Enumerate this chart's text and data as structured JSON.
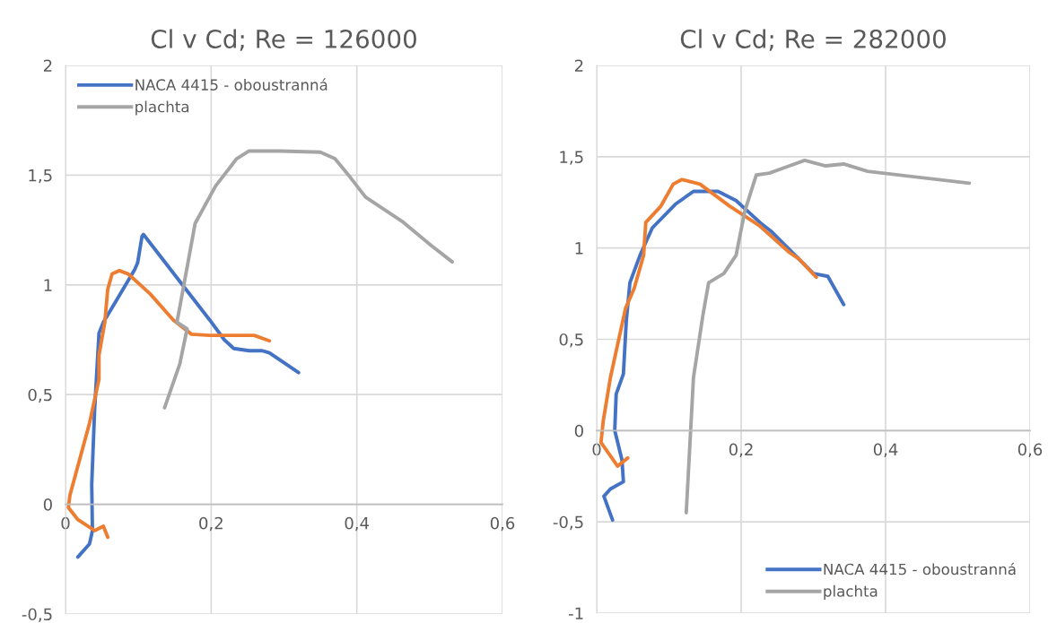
{
  "chart_data": [
    {
      "type": "line",
      "title": "Cl v Cd; Re = 126000",
      "xlim": [
        0,
        0.6
      ],
      "ylim": [
        -0.5,
        2
      ],
      "xticks": [
        {
          "value": 0,
          "label": "0"
        },
        {
          "value": 0.2,
          "label": "0,2"
        },
        {
          "value": 0.4,
          "label": "0,4"
        },
        {
          "value": 0.6,
          "label": "0,6"
        }
      ],
      "yticks": [
        {
          "value": -0.5,
          "label": "-0,5"
        },
        {
          "value": 0,
          "label": "0"
        },
        {
          "value": 0.5,
          "label": "0,5"
        },
        {
          "value": 1,
          "label": "1"
        },
        {
          "value": 1.5,
          "label": "1,5"
        },
        {
          "value": 2,
          "label": "2"
        }
      ],
      "grid": true,
      "legend": "top left",
      "marker": "none",
      "line_style": "solid",
      "series": [
        {
          "name": "NACA 4415 - oboustranná",
          "color": "#4472c4",
          "x": [
            0.017,
            0.033,
            0.037,
            0.036,
            0.04,
            0.046,
            0.052,
            0.07,
            0.095,
            0.099,
            0.105,
            0.107,
            0.198,
            0.218,
            0.231,
            0.252,
            0.27,
            0.28,
            0.3,
            0.32
          ],
          "values": [
            -0.24,
            -0.18,
            -0.12,
            0.09,
            0.43,
            0.78,
            0.83,
            0.93,
            1.07,
            1.1,
            1.22,
            1.23,
            0.84,
            0.75,
            0.71,
            0.7,
            0.7,
            0.69,
            0.645,
            0.6
          ]
        },
        {
          "color": "#ed7d31",
          "x": [
            0.058,
            0.052,
            0.04,
            0.017,
            0.004,
            0.006,
            0.033,
            0.046,
            0.046,
            0.054,
            0.058,
            0.064,
            0.074,
            0.086,
            0.116,
            0.148,
            0.173,
            0.198,
            0.239,
            0.259,
            0.28
          ],
          "values": [
            -0.15,
            -0.1,
            -0.12,
            -0.07,
            -0.015,
            0.04,
            0.37,
            0.57,
            0.68,
            0.83,
            0.98,
            1.05,
            1.065,
            1.05,
            0.96,
            0.84,
            0.775,
            0.77,
            0.77,
            0.77,
            0.745
          ]
        },
        {
          "name": "plachta",
          "color": "#a5a5a5",
          "x": [
            0.136,
            0.157,
            0.167,
            0.153,
            0.157,
            0.178,
            0.206,
            0.235,
            0.252,
            0.28,
            0.296,
            0.35,
            0.37,
            0.391,
            0.412,
            0.462,
            0.502,
            0.531
          ],
          "values": [
            0.44,
            0.64,
            0.8,
            0.83,
            0.9,
            1.28,
            1.45,
            1.575,
            1.61,
            1.61,
            1.61,
            1.605,
            1.575,
            1.49,
            1.4,
            1.29,
            1.18,
            1.105
          ]
        }
      ]
    },
    {
      "type": "line",
      "title": "Cl v Cd; Re = 282000",
      "xlim": [
        0,
        0.6
      ],
      "ylim": [
        -1,
        2
      ],
      "xticks": [
        {
          "value": 0,
          "label": "0"
        },
        {
          "value": 0.2,
          "label": "0,2"
        },
        {
          "value": 0.4,
          "label": "0,4"
        },
        {
          "value": 0.6,
          "label": "0,6"
        }
      ],
      "yticks": [
        {
          "value": -1,
          "label": "-1"
        },
        {
          "value": -0.5,
          "label": "-0,5"
        },
        {
          "value": 0,
          "label": "0"
        },
        {
          "value": 0.5,
          "label": "0,5"
        },
        {
          "value": 1,
          "label": "1"
        },
        {
          "value": 1.5,
          "label": "1,5"
        },
        {
          "value": 2,
          "label": "2"
        }
      ],
      "grid": true,
      "legend": "bottom right",
      "marker": "none",
      "line_style": "solid",
      "series": [
        {
          "name": "NACA 4415 - oboustranná",
          "color": "#4472c4",
          "x": [
            0.022,
            0.01,
            0.019,
            0.037,
            0.035,
            0.025,
            0.027,
            0.037,
            0.041,
            0.046,
            0.06,
            0.077,
            0.109,
            0.134,
            0.168,
            0.193,
            0.226,
            0.242,
            0.3,
            0.32,
            0.342
          ],
          "values": [
            -0.49,
            -0.36,
            -0.32,
            -0.28,
            -0.16,
            0.0,
            0.2,
            0.31,
            0.6,
            0.81,
            0.96,
            1.11,
            1.24,
            1.31,
            1.31,
            1.26,
            1.14,
            1.09,
            0.86,
            0.845,
            0.69
          ]
        },
        {
          "color": "#ed7d31",
          "x": [
            0.043,
            0.029,
            0.006,
            0.009,
            0.019,
            0.04,
            0.052,
            0.065,
            0.068,
            0.089,
            0.106,
            0.118,
            0.143,
            0.184,
            0.226,
            0.267,
            0.28,
            0.304
          ],
          "values": [
            -0.15,
            -0.195,
            -0.065,
            0.05,
            0.29,
            0.67,
            0.78,
            0.96,
            1.14,
            1.23,
            1.35,
            1.375,
            1.35,
            1.23,
            1.12,
            0.975,
            0.94,
            0.84
          ]
        },
        {
          "name": "plachta",
          "color": "#a5a5a5",
          "x": [
            0.124,
            0.134,
            0.147,
            0.155,
            0.176,
            0.193,
            0.205,
            0.221,
            0.239,
            0.267,
            0.288,
            0.317,
            0.342,
            0.375,
            0.516
          ],
          "values": [
            -0.45,
            0.29,
            0.63,
            0.81,
            0.86,
            0.96,
            1.2,
            1.4,
            1.41,
            1.45,
            1.48,
            1.45,
            1.46,
            1.42,
            1.355
          ]
        }
      ]
    }
  ]
}
